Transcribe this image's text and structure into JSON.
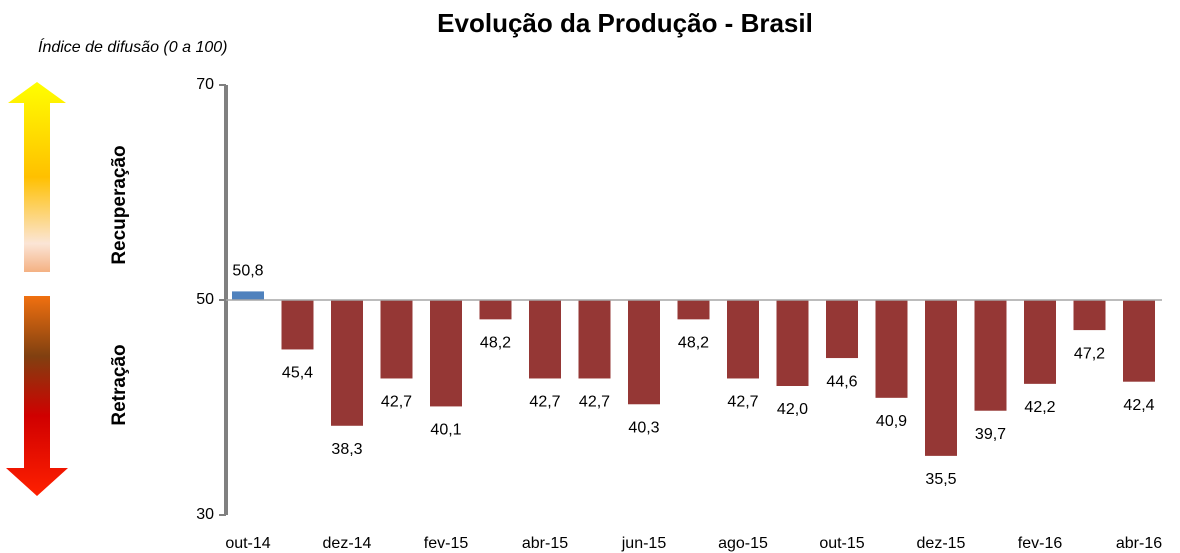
{
  "chart_data": {
    "type": "bar",
    "title": "Evolução da Produção - Brasil",
    "subtitle": "Índice de difusão (0 a 100)",
    "annotations": [
      "Recuperação",
      "Retração"
    ],
    "categories": [
      "out-14",
      null,
      "dez-14",
      null,
      "fev-15",
      null,
      "abr-15",
      null,
      "jun-15",
      null,
      "ago-15",
      null,
      "out-15",
      null,
      "dez-15",
      null,
      "fev-16",
      null,
      "abr-16"
    ],
    "values": [
      50.8,
      45.4,
      38.3,
      42.7,
      40.1,
      48.2,
      42.7,
      42.7,
      40.3,
      48.2,
      42.7,
      42.0,
      44.6,
      40.9,
      35.5,
      39.7,
      42.2,
      47.2,
      42.4
    ],
    "value_labels": [
      "50,8",
      "45,4",
      "38,3",
      "42,7",
      "40,1",
      "48,2",
      "42,7",
      "42,7",
      "40,3",
      "48,2",
      "42,7",
      "42,0",
      "44,6",
      "40,9",
      "35,5",
      "39,7",
      "42,2",
      "47,2",
      "42,4"
    ],
    "colors": [
      "#4f81bd",
      "#953735",
      "#953735",
      "#953735",
      "#953735",
      "#953735",
      "#953735",
      "#953735",
      "#953735",
      "#953735",
      "#953735",
      "#953735",
      "#953735",
      "#953735",
      "#953735",
      "#953735",
      "#953735",
      "#953735",
      "#953735"
    ],
    "bar_baseline": 50,
    "ylim": [
      30,
      70
    ],
    "yticks": [
      30,
      50,
      70
    ]
  }
}
